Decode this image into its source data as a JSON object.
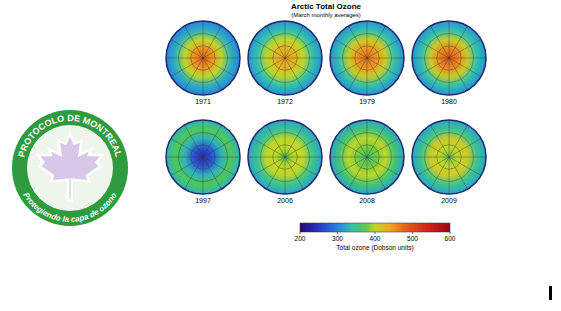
{
  "logo": {
    "top_text": "PROTOCOLO DE MONTREAL",
    "bottom_text": "Protegiendo la capa de ozono"
  },
  "chart_data": {
    "type": "map",
    "title": "Arctic Total Ozone",
    "subtitle": "(March monthly averages)",
    "panels": [
      {
        "label": "1971",
        "ozone": [
          480,
          450,
          400,
          330,
          300
        ]
      },
      {
        "label": "1972",
        "ozone": [
          440,
          430,
          400,
          340,
          310
        ]
      },
      {
        "label": "1979",
        "ozone": [
          470,
          450,
          410,
          340,
          310
        ]
      },
      {
        "label": "1980",
        "ozone": [
          490,
          460,
          410,
          340,
          310
        ]
      },
      {
        "label": "1997",
        "ozone": [
          240,
          270,
          330,
          370,
          330
        ]
      },
      {
        "label": "2006",
        "ozone": [
          370,
          400,
          400,
          350,
          320
        ]
      },
      {
        "label": "2008",
        "ozone": [
          360,
          380,
          400,
          360,
          320
        ]
      },
      {
        "label": "2009",
        "ozone": [
          380,
          400,
          410,
          350,
          320
        ]
      }
    ],
    "colorbar": {
      "label": "Total ozone (Dobson units)",
      "range": [
        200,
        600
      ],
      "ticks": [
        200,
        300,
        400,
        500,
        600
      ]
    }
  }
}
